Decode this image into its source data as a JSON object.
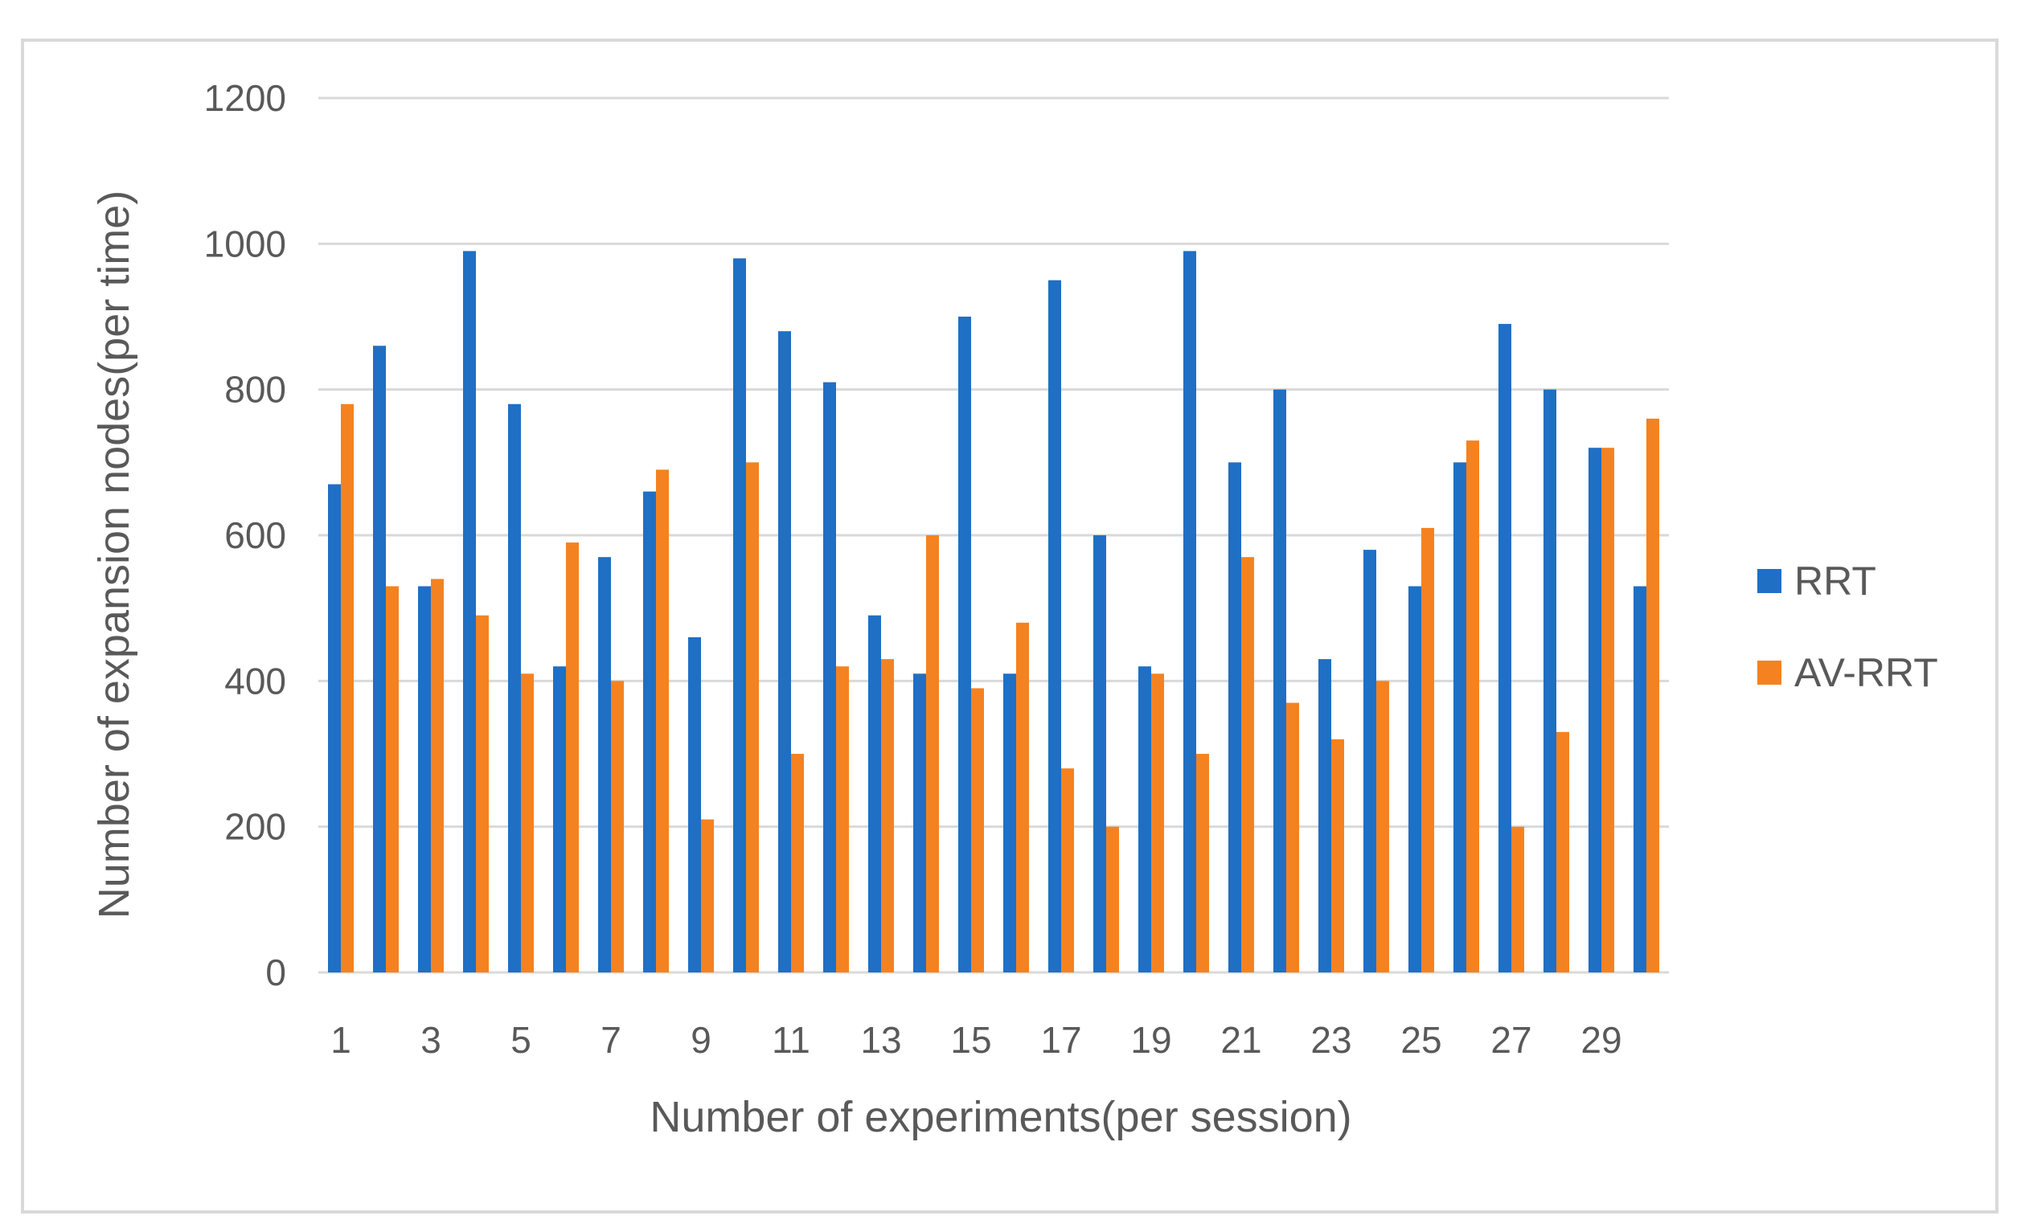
{
  "chart_data": {
    "type": "bar",
    "title": "",
    "xlabel": "Number of experiments(per session)",
    "ylabel": "Number of expansion nodes(per time)",
    "ylim": [
      0,
      1200
    ],
    "yticks": [
      0,
      200,
      400,
      600,
      800,
      1000,
      1200
    ],
    "grid": true,
    "legend_position": "right",
    "categories": [
      "1",
      "2",
      "3",
      "4",
      "5",
      "6",
      "7",
      "8",
      "9",
      "10",
      "11",
      "12",
      "13",
      "14",
      "15",
      "16",
      "17",
      "18",
      "19",
      "20",
      "21",
      "22",
      "23",
      "24",
      "25",
      "26",
      "27",
      "28",
      "29",
      "30"
    ],
    "tick_labels": [
      "1",
      "",
      "3",
      "",
      "5",
      "",
      "7",
      "",
      "9",
      "",
      "11",
      "",
      "13",
      "",
      "15",
      "",
      "17",
      "",
      "19",
      "",
      "21",
      "",
      "23",
      "",
      "25",
      "",
      "27",
      "",
      "29",
      ""
    ],
    "series": [
      {
        "name": "RRT",
        "color": "#1f6fc5",
        "values": [
          670,
          860,
          530,
          990,
          780,
          420,
          570,
          660,
          460,
          980,
          880,
          810,
          490,
          410,
          900,
          410,
          950,
          600,
          420,
          990,
          700,
          800,
          430,
          580,
          530,
          700,
          890,
          800,
          720,
          530
        ]
      },
      {
        "name": "AV-RRT",
        "color": "#f58220",
        "values": [
          780,
          530,
          540,
          490,
          410,
          590,
          400,
          690,
          210,
          700,
          300,
          420,
          430,
          600,
          390,
          480,
          280,
          200,
          410,
          300,
          570,
          370,
          320,
          400,
          610,
          730,
          200,
          330,
          720,
          760
        ]
      }
    ]
  }
}
